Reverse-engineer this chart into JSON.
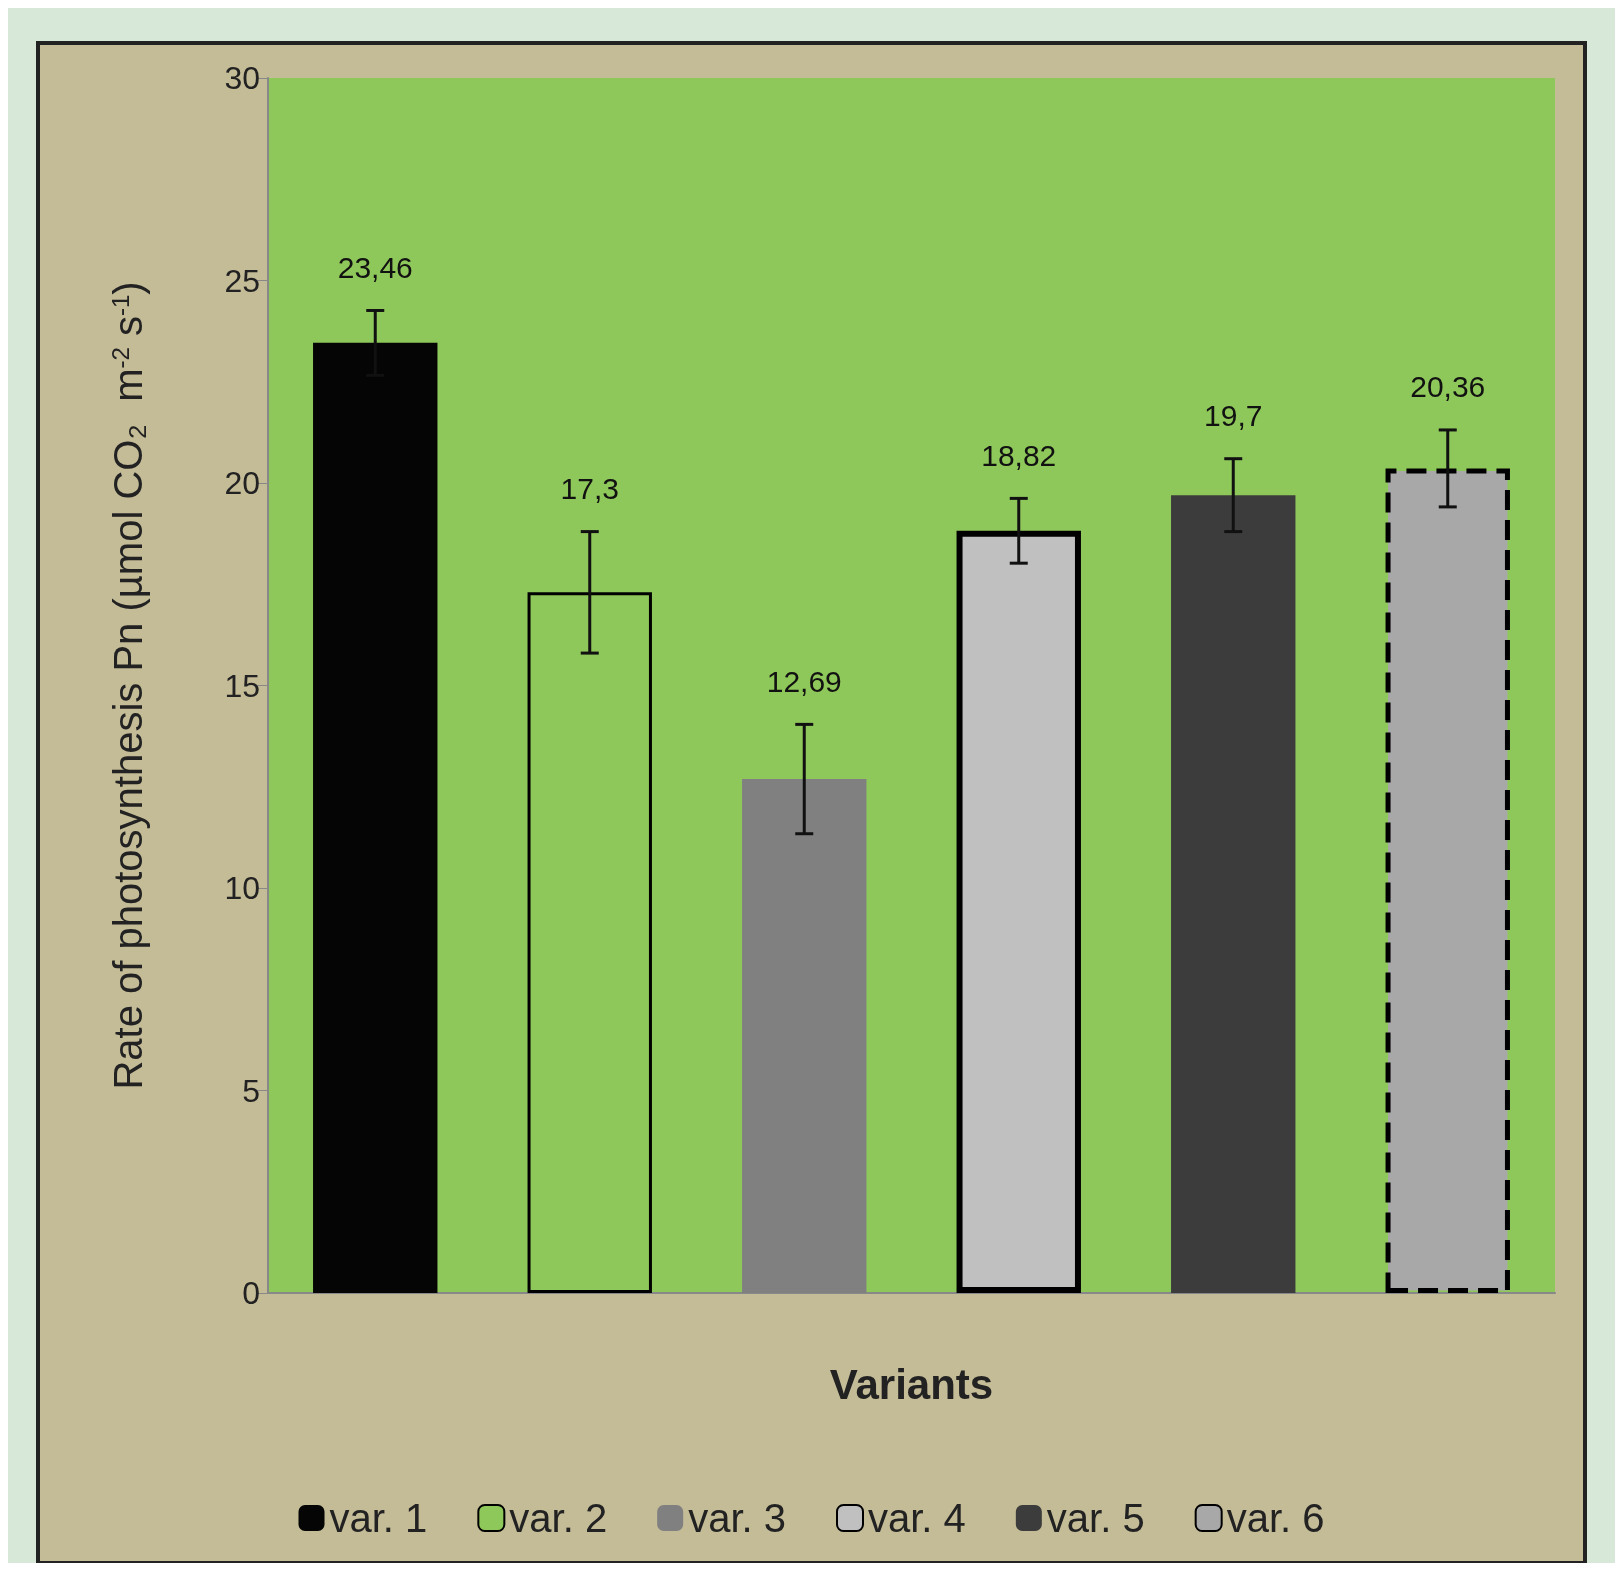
{
  "chart_data": {
    "type": "bar",
    "xlabel": "Variants",
    "ylabel": "Rate of photosynthesis Pn (µmol CO₂  m$^{-2}$ s$^{-1}$)",
    "categories": [
      null,
      null,
      null,
      null,
      null,
      null
    ],
    "series": [
      {
        "name": "var. 1",
        "color": "#050505",
        "values": [
          23.46,
          null,
          null,
          null,
          null,
          null
        ],
        "errors": [
          0.8,
          null,
          null,
          null,
          null,
          null
        ],
        "value_labels": [
          "23,46",
          null,
          null,
          null,
          null,
          null
        ]
      },
      {
        "name": "var. 2",
        "color": "#8fc85a",
        "values": [
          null,
          17.3,
          null,
          null,
          null,
          null
        ],
        "errors": [
          null,
          1.5,
          null,
          null,
          null,
          null
        ],
        "value_labels": [
          null,
          "17,3",
          null,
          null,
          null,
          null
        ]
      },
      {
        "name": "var. 3",
        "color": "#808080",
        "values": [
          null,
          null,
          12.69,
          null,
          null,
          null
        ],
        "errors": [
          null,
          null,
          1.35,
          null,
          null,
          null
        ],
        "value_labels": [
          null,
          null,
          "12,69",
          null,
          null,
          null
        ]
      },
      {
        "name": "var. 4",
        "color": "#c0c0c0",
        "values": [
          null,
          null,
          null,
          18.82,
          null,
          null
        ],
        "errors": [
          null,
          null,
          null,
          0.8,
          null,
          null
        ],
        "value_labels": [
          null,
          null,
          null,
          "18,82",
          null,
          null
        ]
      },
      {
        "name": "var. 5",
        "color": "#3c3c3c",
        "values": [
          null,
          null,
          null,
          null,
          19.7,
          null
        ],
        "errors": [
          null,
          null,
          null,
          null,
          0.9,
          null
        ],
        "value_labels": [
          null,
          null,
          null,
          null,
          "19,7",
          null
        ]
      },
      {
        "name": "var. 6",
        "color": "#a8a8a8",
        "values": [
          null,
          null,
          null,
          null,
          null,
          20.36
        ],
        "errors": [
          null,
          null,
          null,
          null,
          null,
          0.95
        ],
        "value_labels": [
          null,
          null,
          null,
          null,
          null,
          "20,36"
        ]
      }
    ],
    "ylim": [
      0,
      30
    ],
    "yticks": [
      0,
      5,
      10,
      15,
      20,
      25,
      30
    ],
    "grid": false,
    "legend": "bottom"
  }
}
